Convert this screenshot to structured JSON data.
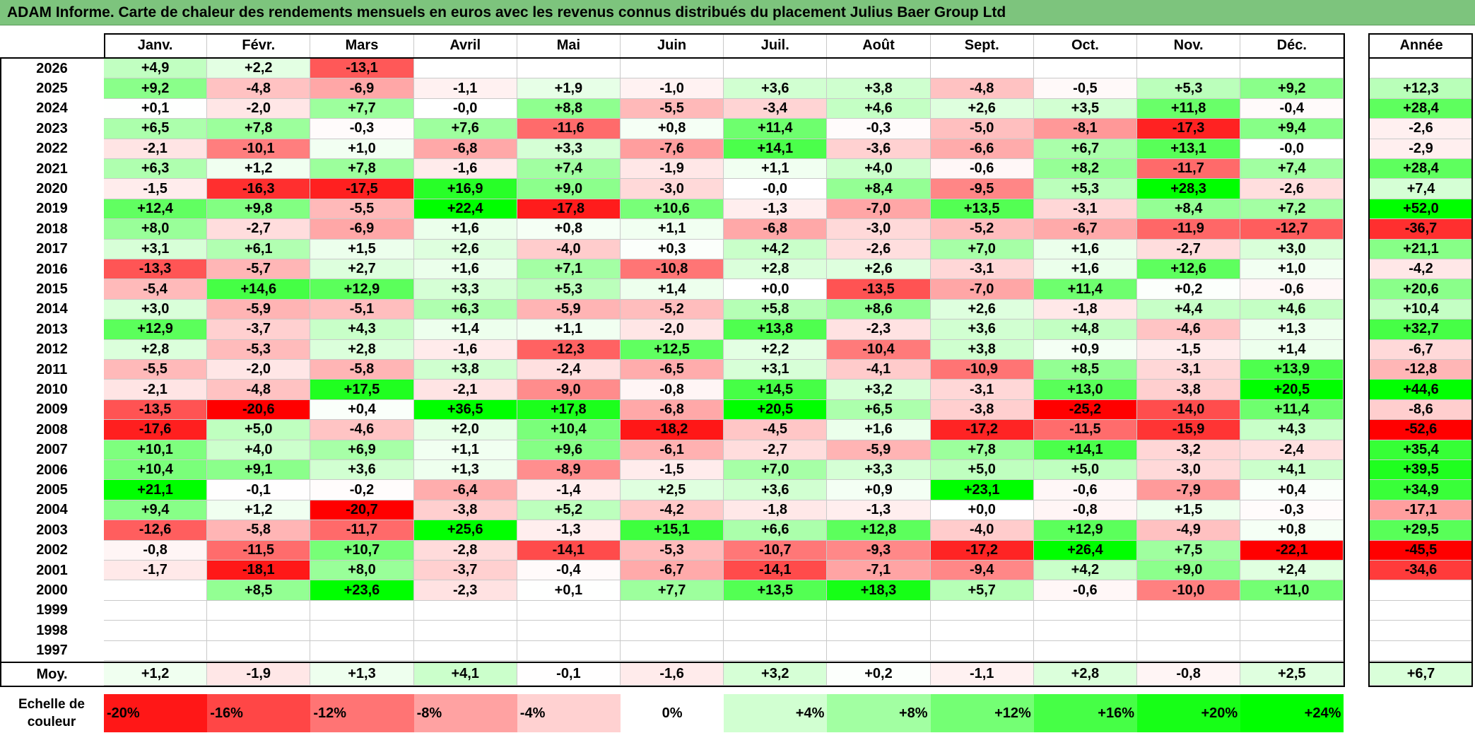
{
  "title": "ADAM Informe. Carte de chaleur des rendements mensuels en euros avec les revenus connus distribués du placement Julius Baer Group Ltd",
  "colors": {
    "title_bg": "#7dc47d",
    "neg_max": "#ff0000",
    "pos_max": "#00ff00",
    "neutral": "#ffffff"
  },
  "chart_data": {
    "type": "heatmap",
    "title": "ADAM Informe. Carte de chaleur des rendements mensuels en euros avec les revenus connus distribués du placement Julius Baer Group Ltd",
    "columns": [
      "Janv.",
      "Févr.",
      "Mars",
      "Avril",
      "Mai",
      "Juin",
      "Juil.",
      "Août",
      "Sept.",
      "Oct.",
      "Nov.",
      "Déc."
    ],
    "year_header": "Année",
    "rows": [
      {
        "year": "2026",
        "months": [
          "+4,9",
          "+2,2",
          "-13,1",
          "",
          "",
          "",
          "",
          "",
          "",
          "",
          "",
          ""
        ],
        "annual": ""
      },
      {
        "year": "2025",
        "months": [
          "+9,2",
          "-4,8",
          "-6,9",
          "-1,1",
          "+1,9",
          "-1,0",
          "+3,6",
          "+3,8",
          "-4,8",
          "-0,5",
          "+5,3",
          "+9,2"
        ],
        "annual": "+12,3"
      },
      {
        "year": "2024",
        "months": [
          "+0,1",
          "-2,0",
          "+7,7",
          "-0,0",
          "+8,8",
          "-5,5",
          "-3,4",
          "+4,6",
          "+2,6",
          "+3,5",
          "+11,8",
          "-0,4"
        ],
        "annual": "+28,4"
      },
      {
        "year": "2023",
        "months": [
          "+6,5",
          "+7,8",
          "-0,3",
          "+7,6",
          "-11,6",
          "+0,8",
          "+11,4",
          "-0,3",
          "-5,0",
          "-8,1",
          "-17,3",
          "+9,4"
        ],
        "annual": "-2,6"
      },
      {
        "year": "2022",
        "months": [
          "-2,1",
          "-10,1",
          "+1,0",
          "-6,8",
          "+3,3",
          "-7,6",
          "+14,1",
          "-3,6",
          "-6,6",
          "+6,7",
          "+13,1",
          "-0,0"
        ],
        "annual": "-2,9"
      },
      {
        "year": "2021",
        "months": [
          "+6,3",
          "+1,2",
          "+7,8",
          "-1,6",
          "+7,4",
          "-1,9",
          "+1,1",
          "+4,0",
          "-0,6",
          "+8,2",
          "-11,7",
          "+7,4"
        ],
        "annual": "+28,4"
      },
      {
        "year": "2020",
        "months": [
          "-1,5",
          "-16,3",
          "-17,5",
          "+16,9",
          "+9,0",
          "-3,0",
          "-0,0",
          "+8,4",
          "-9,5",
          "+5,3",
          "+28,3",
          "-2,6"
        ],
        "annual": "+7,4"
      },
      {
        "year": "2019",
        "months": [
          "+12,4",
          "+9,8",
          "-5,5",
          "+22,4",
          "-17,8",
          "+10,6",
          "-1,3",
          "-7,0",
          "+13,5",
          "-3,1",
          "+8,4",
          "+7,2"
        ],
        "annual": "+52,0"
      },
      {
        "year": "2018",
        "months": [
          "+8,0",
          "-2,7",
          "-6,9",
          "+1,6",
          "+0,8",
          "+1,1",
          "-6,8",
          "-3,0",
          "-5,2",
          "-6,7",
          "-11,9",
          "-12,7"
        ],
        "annual": "-36,7"
      },
      {
        "year": "2017",
        "months": [
          "+3,1",
          "+6,1",
          "+1,5",
          "+2,6",
          "-4,0",
          "+0,3",
          "+4,2",
          "-2,6",
          "+7,0",
          "+1,6",
          "-2,7",
          "+3,0"
        ],
        "annual": "+21,1"
      },
      {
        "year": "2016",
        "months": [
          "-13,3",
          "-5,7",
          "+2,7",
          "+1,6",
          "+7,1",
          "-10,8",
          "+2,8",
          "+2,6",
          "-3,1",
          "+1,6",
          "+12,6",
          "+1,0"
        ],
        "annual": "-4,2"
      },
      {
        "year": "2015",
        "months": [
          "-5,4",
          "+14,6",
          "+12,9",
          "+3,3",
          "+5,3",
          "+1,4",
          "+0,0",
          "-13,5",
          "-7,0",
          "+11,4",
          "+0,2",
          "-0,6"
        ],
        "annual": "+20,6"
      },
      {
        "year": "2014",
        "months": [
          "+3,0",
          "-5,9",
          "-5,1",
          "+6,3",
          "-5,9",
          "-5,2",
          "+5,8",
          "+8,6",
          "+2,6",
          "-1,8",
          "+4,4",
          "+4,6"
        ],
        "annual": "+10,4"
      },
      {
        "year": "2013",
        "months": [
          "+12,9",
          "-3,7",
          "+4,3",
          "+1,4",
          "+1,1",
          "-2,0",
          "+13,8",
          "-2,3",
          "+3,6",
          "+4,8",
          "-4,6",
          "+1,3"
        ],
        "annual": "+32,7"
      },
      {
        "year": "2012",
        "months": [
          "+2,8",
          "-5,3",
          "+2,8",
          "-1,6",
          "-12,3",
          "+12,5",
          "+2,2",
          "-10,4",
          "+3,8",
          "+0,9",
          "-1,5",
          "+1,4"
        ],
        "annual": "-6,7"
      },
      {
        "year": "2011",
        "months": [
          "-5,5",
          "-2,0",
          "-5,8",
          "+3,8",
          "-2,4",
          "-6,5",
          "+3,1",
          "-4,1",
          "-10,9",
          "+8,5",
          "-3,1",
          "+13,9"
        ],
        "annual": "-12,8"
      },
      {
        "year": "2010",
        "months": [
          "-2,1",
          "-4,8",
          "+17,5",
          "-2,1",
          "-9,0",
          "-0,8",
          "+14,5",
          "+3,2",
          "-3,1",
          "+13,0",
          "-3,8",
          "+20,5"
        ],
        "annual": "+44,6"
      },
      {
        "year": "2009",
        "months": [
          "-13,5",
          "-20,6",
          "+0,4",
          "+36,5",
          "+17,8",
          "-6,8",
          "+20,5",
          "+6,5",
          "-3,8",
          "-25,2",
          "-14,0",
          "+11,4"
        ],
        "annual": "-8,6"
      },
      {
        "year": "2008",
        "months": [
          "-17,6",
          "+5,0",
          "-4,6",
          "+2,0",
          "+10,4",
          "-18,2",
          "-4,5",
          "+1,6",
          "-17,2",
          "-11,5",
          "-15,9",
          "+4,3"
        ],
        "annual": "-52,6"
      },
      {
        "year": "2007",
        "months": [
          "+10,1",
          "+4,0",
          "+6,9",
          "+1,1",
          "+9,6",
          "-6,1",
          "-2,7",
          "-5,9",
          "+7,8",
          "+14,1",
          "-3,2",
          "-2,4"
        ],
        "annual": "+35,4"
      },
      {
        "year": "2006",
        "months": [
          "+10,4",
          "+9,1",
          "+3,6",
          "+1,3",
          "-8,9",
          "-1,5",
          "+7,0",
          "+3,3",
          "+5,0",
          "+5,0",
          "-3,0",
          "+4,1"
        ],
        "annual": "+39,5"
      },
      {
        "year": "2005",
        "months": [
          "+21,1",
          "-0,1",
          "-0,2",
          "-6,4",
          "-1,4",
          "+2,5",
          "+3,6",
          "+0,9",
          "+23,1",
          "-0,6",
          "-7,9",
          "+0,4"
        ],
        "annual": "+34,9"
      },
      {
        "year": "2004",
        "months": [
          "+9,4",
          "+1,2",
          "-20,7",
          "-3,8",
          "+5,2",
          "-4,2",
          "-1,8",
          "-1,3",
          "+0,0",
          "-0,8",
          "+1,5",
          "-0,3"
        ],
        "annual": "-17,1"
      },
      {
        "year": "2003",
        "months": [
          "-12,6",
          "-5,8",
          "-11,7",
          "+25,6",
          "-1,3",
          "+15,1",
          "+6,6",
          "+12,8",
          "-4,0",
          "+12,9",
          "-4,9",
          "+0,8"
        ],
        "annual": "+29,5"
      },
      {
        "year": "2002",
        "months": [
          "-0,8",
          "-11,5",
          "+10,7",
          "-2,8",
          "-14,1",
          "-5,3",
          "-10,7",
          "-9,3",
          "-17,2",
          "+26,4",
          "+7,5",
          "-22,1"
        ],
        "annual": "-45,5"
      },
      {
        "year": "2001",
        "months": [
          "-1,7",
          "-18,1",
          "+8,0",
          "-3,7",
          "-0,4",
          "-6,7",
          "-14,1",
          "-7,1",
          "-9,4",
          "+4,2",
          "+9,0",
          "+2,4"
        ],
        "annual": "-34,6"
      },
      {
        "year": "2000",
        "months": [
          "",
          "+8,5",
          "+23,6",
          "-2,3",
          "+0,1",
          "+7,7",
          "+13,5",
          "+18,3",
          "+5,7",
          "-0,6",
          "-10,0",
          "+11,0"
        ],
        "annual": ""
      },
      {
        "year": "1999",
        "months": [
          "",
          "",
          "",
          "",
          "",
          "",
          "",
          "",
          "",
          "",
          "",
          ""
        ],
        "annual": ""
      },
      {
        "year": "1998",
        "months": [
          "",
          "",
          "",
          "",
          "",
          "",
          "",
          "",
          "",
          "",
          "",
          ""
        ],
        "annual": ""
      },
      {
        "year": "1997",
        "months": [
          "",
          "",
          "",
          "",
          "",
          "",
          "",
          "",
          "",
          "",
          "",
          ""
        ],
        "annual": ""
      }
    ],
    "average": {
      "label": "Moy.",
      "months": [
        "+1,2",
        "-1,9",
        "+1,3",
        "+4,1",
        "-0,1",
        "-1,6",
        "+3,2",
        "+0,2",
        "-1,1",
        "+2,8",
        "-0,8",
        "+2,5"
      ],
      "annual": "+6,7"
    },
    "scale": {
      "label_line1": "Echelle de",
      "label_line2": "couleur",
      "stops": [
        {
          "label": "-20%",
          "value": -20
        },
        {
          "label": "-16%",
          "value": -16
        },
        {
          "label": "-12%",
          "value": -12
        },
        {
          "label": "-8%",
          "value": -8
        },
        {
          "label": "-4%",
          "value": -4
        },
        {
          "label": "0%",
          "value": 0
        },
        {
          "label": "+4%",
          "value": 4
        },
        {
          "label": "+8%",
          "value": 8
        },
        {
          "label": "+12%",
          "value": 12
        },
        {
          "label": "+16%",
          "value": 16
        },
        {
          "label": "+20%",
          "value": 20
        },
        {
          "label": "+24%",
          "value": 24
        }
      ]
    }
  }
}
